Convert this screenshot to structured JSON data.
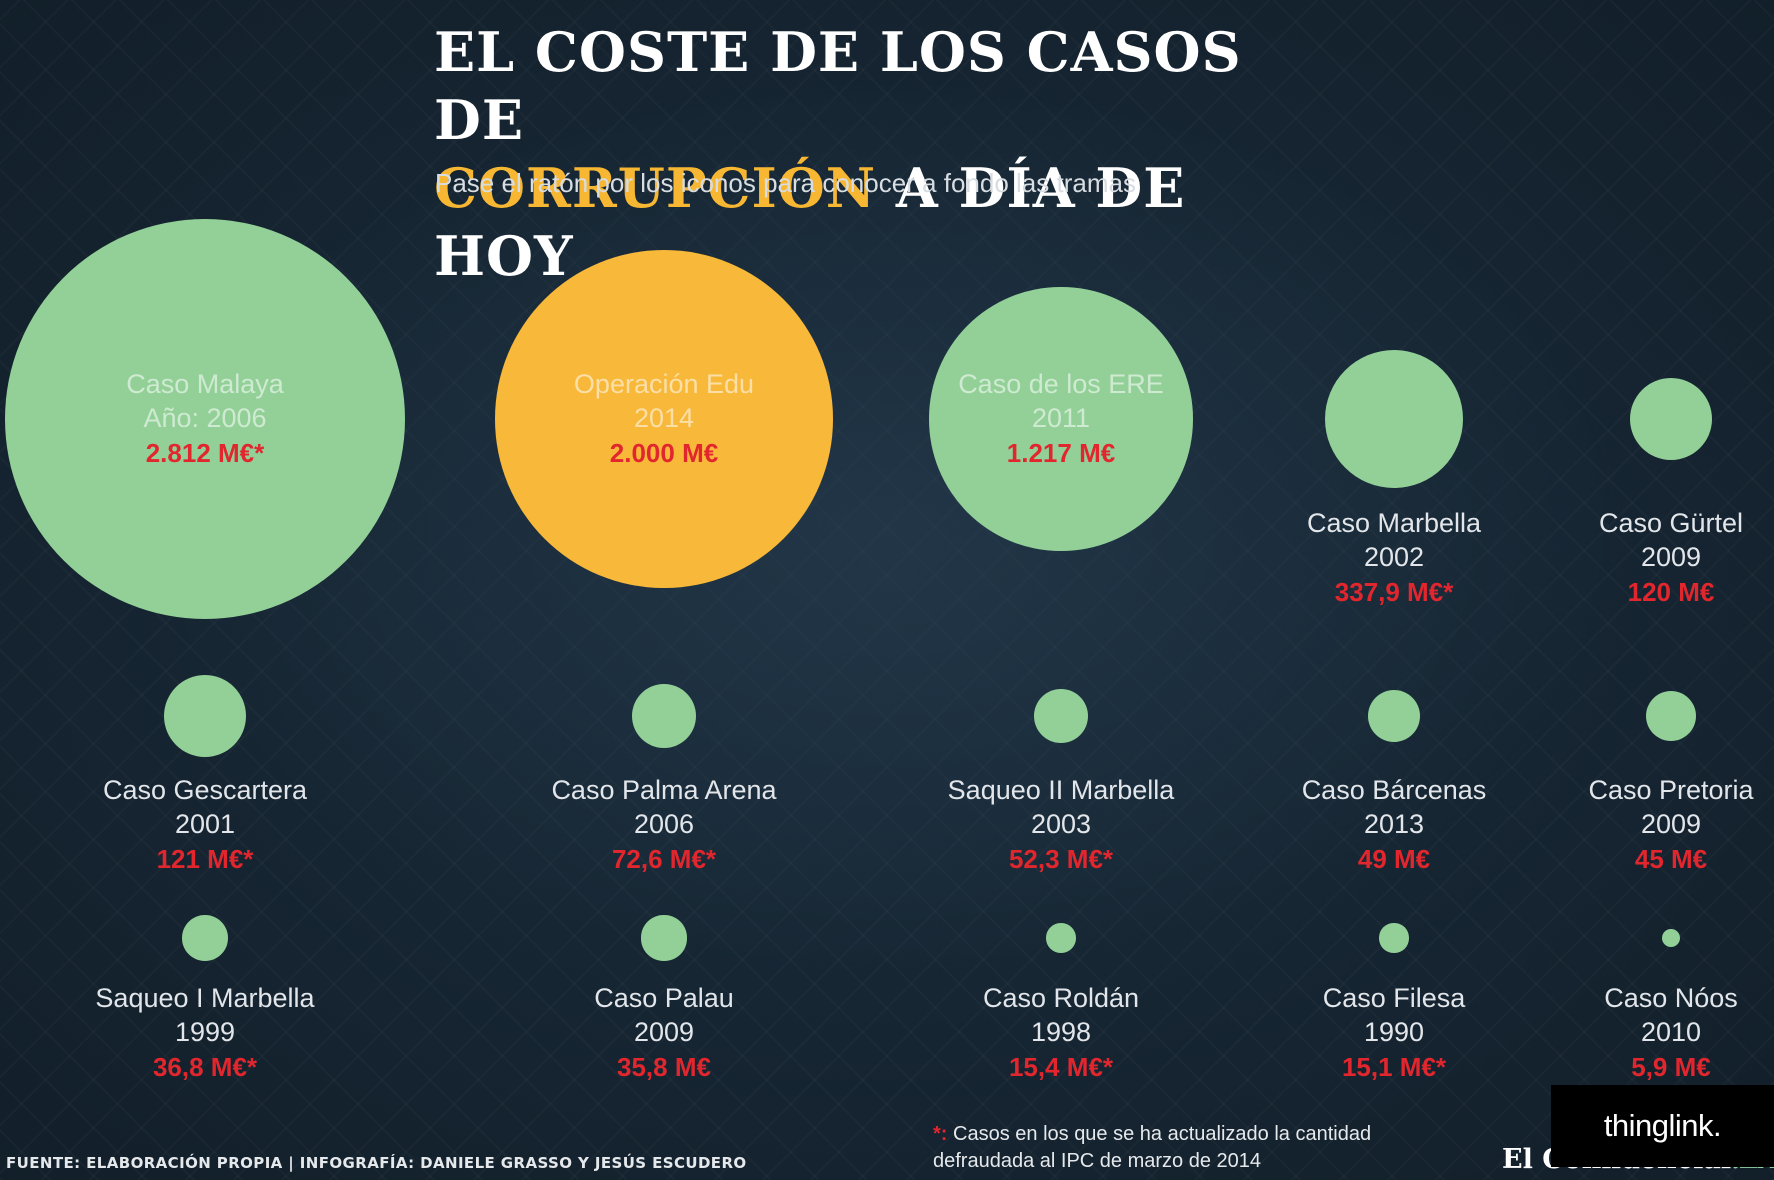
{
  "title": {
    "line1": "EL COSTE DE LOS CASOS DE",
    "accent": "CORRUPCIÓN",
    "rest": "A DÍA DE HOY"
  },
  "subtitle": "Pase el ratón por los iconos para conocer a fondo las tramas",
  "colors": {
    "bubble_green": "#92d098",
    "bubble_yellow": "#f8b83a",
    "amount_red": "#e2262e",
    "title_accent": "#f7b733"
  },
  "cases": [
    {
      "name": "Caso Malaya",
      "year": "Año: 2006",
      "amount": "2.812 M€*",
      "value": 2812,
      "label_inside": true,
      "highlight": false
    },
    {
      "name": "Operación Edu",
      "year": "2014",
      "amount": "2.000 M€",
      "value": 2000,
      "label_inside": true,
      "highlight": true
    },
    {
      "name": "Caso de los ERE",
      "year": "2011",
      "amount": "1.217 M€",
      "value": 1217,
      "label_inside": true,
      "highlight": false
    },
    {
      "name": "Caso Marbella",
      "year": "2002",
      "amount": "337,9 M€*",
      "value": 337.9,
      "label_inside": false,
      "highlight": false
    },
    {
      "name": "Caso Gürtel",
      "year": "2009",
      "amount": "120 M€",
      "value": 120,
      "label_inside": false,
      "highlight": false
    },
    {
      "name": "Caso Gescartera",
      "year": "2001",
      "amount": "121 M€*",
      "value": 121,
      "label_inside": false,
      "highlight": false
    },
    {
      "name": "Caso Palma Arena",
      "year": "2006",
      "amount": "72,6 M€*",
      "value": 72.6,
      "label_inside": false,
      "highlight": false
    },
    {
      "name": "Saqueo II Marbella",
      "year": "2003",
      "amount": "52,3 M€*",
      "value": 52.3,
      "label_inside": false,
      "highlight": false
    },
    {
      "name": "Caso Bárcenas",
      "year": "2013",
      "amount": "49 M€",
      "value": 49,
      "label_inside": false,
      "highlight": false
    },
    {
      "name": "Caso Pretoria",
      "year": "2009",
      "amount": "45 M€",
      "value": 45,
      "label_inside": false,
      "highlight": false
    },
    {
      "name": "Saqueo I Marbella",
      "year": "1999",
      "amount": "36,8 M€*",
      "value": 36.8,
      "label_inside": false,
      "highlight": false
    },
    {
      "name": "Caso Palau",
      "year": "2009",
      "amount": "35,8 M€",
      "value": 35.8,
      "label_inside": false,
      "highlight": false
    },
    {
      "name": "Caso Roldán",
      "year": "1998",
      "amount": "15,4 M€*",
      "value": 15.4,
      "label_inside": false,
      "highlight": false
    },
    {
      "name": "Caso Filesa",
      "year": "1990",
      "amount": "15,1 M€*",
      "value": 15.1,
      "label_inside": false,
      "highlight": false
    },
    {
      "name": "Caso Nóos",
      "year": "2010",
      "amount": "5,9 M€",
      "value": 5.9,
      "label_inside": false,
      "highlight": false
    }
  ],
  "footer": {
    "source": "FUENTE: ELABORACIÓN PROPIA | INFOGRAFÍA: DANIELE GRASSO Y JESÚS ESCUDERO",
    "note_star": "*:",
    "note": "Casos en los que se ha actualizado la cantidad defraudada al IPC de marzo de 2014",
    "brand": "El Confidencial",
    "brand_lab": ".LAB",
    "thinglink": "thinglink."
  }
}
